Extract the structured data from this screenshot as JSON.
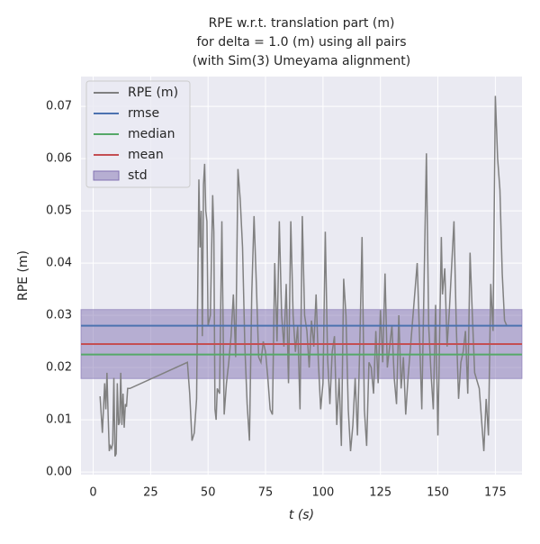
{
  "chart_data": {
    "type": "line",
    "title": [
      "RPE w.r.t. translation part (m)",
      "for delta = 1.0 (m) using all pairs",
      "(with Sim(3) Umeyama alignment)"
    ],
    "xlabel": "t (s)",
    "ylabel": "RPE (m)",
    "xlim": [
      -5.3,
      186.6
    ],
    "ylim": [
      -0.0005,
      0.0757
    ],
    "xticks": [
      0,
      25,
      50,
      75,
      100,
      125,
      150,
      175
    ],
    "yticks": [
      {
        "value": 0,
        "label": "0.00"
      },
      0.01,
      0.02,
      0.03,
      0.04,
      0.05,
      0.06,
      0.07
    ],
    "grid": true,
    "legend": "upper left",
    "series": [
      {
        "name": "RPE (m)",
        "color": "#808080",
        "x": [
          3,
          4,
          5,
          5.5,
          6,
          6.5,
          7,
          7.5,
          8,
          8.5,
          9,
          9.5,
          10,
          10.5,
          11,
          11.5,
          12,
          12.5,
          13,
          13.5,
          14,
          14.5,
          15,
          16,
          41,
          42,
          43,
          44,
          45,
          46,
          46.5,
          47,
          47.5,
          48,
          48.5,
          49,
          49.5,
          50,
          51,
          52,
          52.5,
          53,
          53.5,
          54,
          55,
          56,
          57,
          58,
          59,
          60,
          61,
          62,
          63,
          63.5,
          64,
          65,
          66,
          67,
          68,
          69,
          70,
          71,
          72,
          73,
          74,
          75,
          76,
          77,
          78,
          79,
          80,
          81,
          82,
          83,
          84,
          85,
          86,
          87,
          88,
          89,
          90,
          91,
          92,
          93,
          94,
          95,
          96,
          97,
          98,
          99,
          100,
          101,
          102,
          103,
          104,
          105,
          106,
          107,
          108,
          109,
          110,
          111,
          112,
          113,
          114,
          115,
          116,
          117,
          118,
          119,
          120,
          121,
          122,
          123,
          124,
          125,
          126,
          127,
          128,
          129,
          130,
          131,
          132,
          133,
          134,
          135,
          136,
          137,
          141,
          143,
          145,
          146,
          147,
          148,
          149,
          150,
          151.5,
          152,
          153,
          154,
          155,
          157,
          158,
          159,
          160,
          161,
          162,
          163,
          164,
          165,
          166,
          168,
          170,
          171,
          172,
          173,
          174,
          175,
          176,
          177,
          178,
          179,
          180
        ],
        "values": [
          0.0145,
          0.0075,
          0.017,
          0.012,
          0.019,
          0.011,
          0.004,
          0.005,
          0.0045,
          0.0055,
          0.018,
          0.003,
          0.0035,
          0.017,
          0.009,
          0.0095,
          0.019,
          0.009,
          0.015,
          0.0085,
          0.013,
          0.0125,
          0.016,
          0.016,
          0.021,
          0.015,
          0.006,
          0.0075,
          0.014,
          0.056,
          0.043,
          0.05,
          0.026,
          0.055,
          0.059,
          0.05,
          0.048,
          0.028,
          0.03,
          0.053,
          0.046,
          0.012,
          0.01,
          0.016,
          0.015,
          0.048,
          0.011,
          0.017,
          0.021,
          0.026,
          0.034,
          0.022,
          0.058,
          0.055,
          0.052,
          0.043,
          0.024,
          0.013,
          0.006,
          0.034,
          0.049,
          0.036,
          0.022,
          0.021,
          0.025,
          0.023,
          0.018,
          0.012,
          0.011,
          0.04,
          0.025,
          0.048,
          0.03,
          0.024,
          0.036,
          0.017,
          0.048,
          0.03,
          0.023,
          0.028,
          0.012,
          0.049,
          0.03,
          0.027,
          0.02,
          0.029,
          0.024,
          0.034,
          0.021,
          0.012,
          0.017,
          0.046,
          0.022,
          0.013,
          0.023,
          0.026,
          0.009,
          0.018,
          0.005,
          0.037,
          0.03,
          0.012,
          0.004,
          0.009,
          0.018,
          0.007,
          0.024,
          0.045,
          0.012,
          0.005,
          0.021,
          0.02,
          0.015,
          0.027,
          0.017,
          0.031,
          0.021,
          0.038,
          0.02,
          0.024,
          0.028,
          0.018,
          0.013,
          0.03,
          0.016,
          0.022,
          0.011,
          0.018,
          0.04,
          0.012,
          0.061,
          0.028,
          0.019,
          0.012,
          0.032,
          0.007,
          0.045,
          0.034,
          0.039,
          0.024,
          0.031,
          0.048,
          0.028,
          0.014,
          0.021,
          0.023,
          0.027,
          0.015,
          0.042,
          0.03,
          0.019,
          0.016,
          0.004,
          0.014,
          0.007,
          0.036,
          0.027,
          0.072,
          0.06,
          0.054,
          0.038,
          0.029,
          0.028
        ]
      }
    ],
    "stats": [
      {
        "name": "rmse",
        "color": "#4c72b0",
        "value": 0.028
      },
      {
        "name": "median",
        "color": "#55a868",
        "value": 0.0225
      },
      {
        "name": "mean",
        "color": "#c44e52",
        "value": 0.0245
      }
    ],
    "std": {
      "name": "std",
      "color": "#8172b2",
      "value": 0.0066
    }
  }
}
